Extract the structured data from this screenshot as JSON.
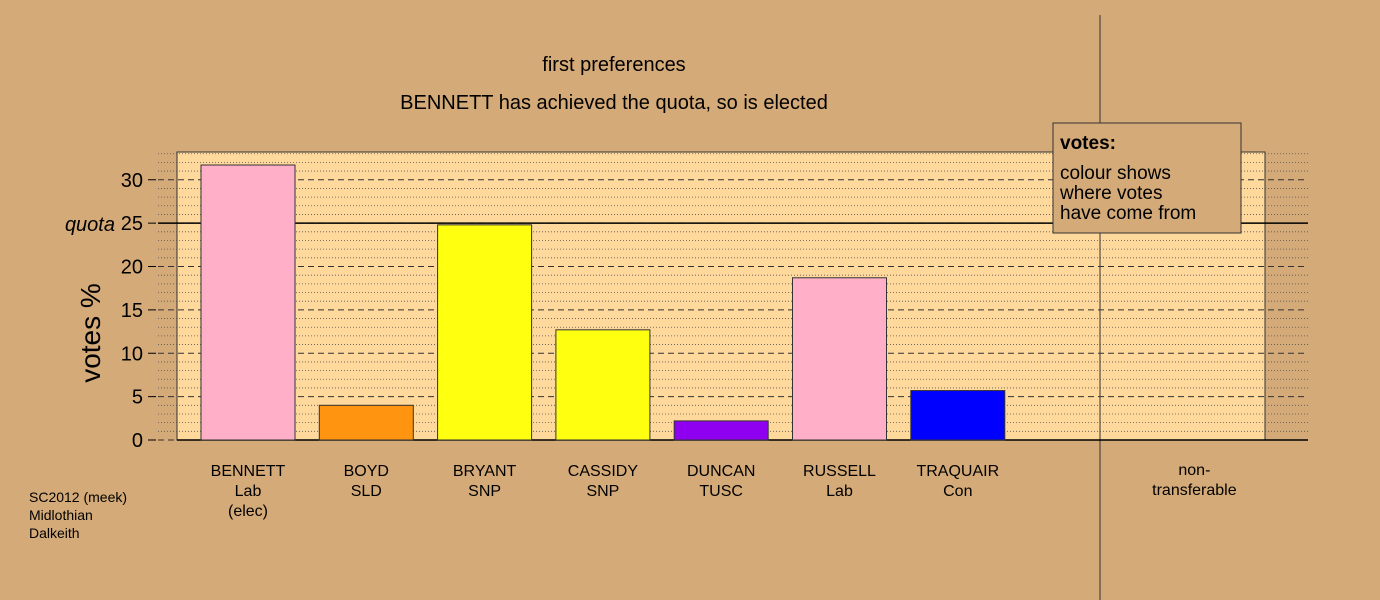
{
  "chart_data": {
    "type": "bar",
    "title": "first preferences",
    "subtitle": "BENNETT has achieved the quota, so is elected",
    "y_label": "votes %",
    "categories": [
      "BENNETT",
      "BOYD",
      "BRYANT",
      "CASSIDY",
      "DUNCAN",
      "RUSSELL",
      "TRAQUAIR"
    ],
    "parties": [
      "Lab",
      "SLD",
      "SNP",
      "SNP",
      "TUSC",
      "Lab",
      "Con"
    ],
    "annotations": [
      {
        "category": "BENNETT",
        "text": "(elec)"
      }
    ],
    "values": [
      31.7,
      4.0,
      24.8,
      12.7,
      2.2,
      18.7,
      5.7
    ],
    "colors": [
      "#ffb0c8",
      "#ff9410",
      "#ffff10",
      "#ffff10",
      "#9000f0",
      "#ffb0c8",
      "#0000ff"
    ],
    "non_transferable": [
      "non-",
      "transferable"
    ],
    "quota": {
      "value": 25,
      "label": "quota"
    },
    "ylim": [
      0,
      33.2
    ],
    "yticks": [
      0,
      5,
      10,
      15,
      20,
      25,
      30
    ],
    "minor_yticks": [
      1,
      2,
      3,
      4,
      6,
      7,
      8,
      9,
      11,
      12,
      13,
      14,
      16,
      17,
      18,
      19,
      21,
      22,
      23,
      24,
      26,
      27,
      28,
      29,
      31,
      32,
      33
    ],
    "grid": true,
    "legend": {
      "title": "votes:",
      "lines": [
        "colour shows",
        "where votes",
        "have come from"
      ]
    },
    "footer": [
      "SC2012 (meek)",
      "Midlothian",
      "Dalkeith"
    ]
  }
}
